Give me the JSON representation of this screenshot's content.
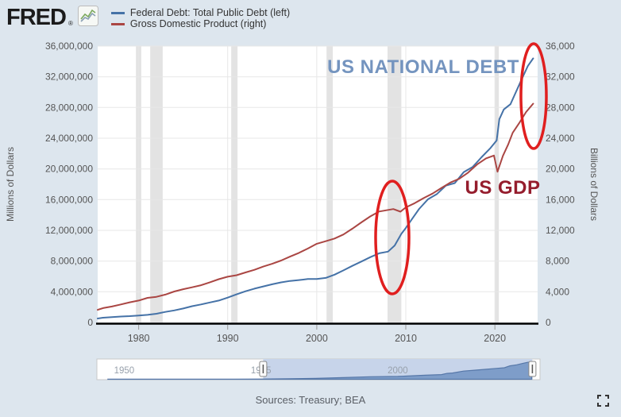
{
  "header": {
    "logo_text": "FRED",
    "logo_reg_mark": "®",
    "legend": [
      {
        "label": "Federal Debt: Total Public Debt (left)",
        "color": "#4572a7"
      },
      {
        "label": "Gross Domestic Product (right)",
        "color": "#aa4643"
      }
    ]
  },
  "colors": {
    "background": "#dde6ee",
    "plot_bg": "#ffffff",
    "grid": "#e7e7e7",
    "recession_band": "#e3e3e3",
    "axis_line": "#000000",
    "axis_text": "#555555",
    "tick_mark": "#999999",
    "slider_track": "#ffffff",
    "slider_track_border": "#c8c8c8",
    "slider_selection": "#c7d4ea",
    "slider_area_fill": "#7e9dc9",
    "slider_area_line": "#5677a8",
    "slider_label": "#98a1ac",
    "handle_fill": "#fafafa",
    "handle_border": "#888888",
    "footer_text": "#5a5f66",
    "fullscreen_icon": "#333333"
  },
  "chart_data": {
    "type": "line",
    "x_axis": {
      "range": [
        1975.4,
        2024.8
      ],
      "ticks": [
        1980,
        1990,
        2000,
        2010,
        2020
      ]
    },
    "left_axis": {
      "label": "Millions of Dollars",
      "range": [
        0,
        36000000
      ],
      "tick_labels": [
        "36,000,000",
        "32,000,000",
        "28,000,000",
        "24,000,000",
        "20,000,000",
        "16,000,000",
        "12,000,000",
        "8,000,000",
        "4,000,000",
        "0"
      ]
    },
    "right_axis": {
      "label": "Billions of Dollars",
      "range": [
        0,
        36000
      ],
      "tick_labels": [
        "36,000",
        "32,000",
        "28,000",
        "24,000",
        "20,000",
        "16,000",
        "12,000",
        "8,000",
        "4,000",
        "0"
      ]
    },
    "series": [
      {
        "name": "Federal Debt: Total Public Debt",
        "axis": "left",
        "color": "#4572a7",
        "points": [
          [
            1975.4,
            520000
          ],
          [
            1976,
            620000
          ],
          [
            1977,
            699000
          ],
          [
            1978,
            772000
          ],
          [
            1979,
            827000
          ],
          [
            1980,
            908000
          ],
          [
            1981,
            998000
          ],
          [
            1982,
            1142000
          ],
          [
            1983,
            1377000
          ],
          [
            1984,
            1572000
          ],
          [
            1985,
            1823000
          ],
          [
            1986,
            2125000
          ],
          [
            1987,
            2350000
          ],
          [
            1988,
            2602000
          ],
          [
            1989,
            2857000
          ],
          [
            1990,
            3233000
          ],
          [
            1991,
            3665000
          ],
          [
            1992,
            4065000
          ],
          [
            1993,
            4411000
          ],
          [
            1994,
            4693000
          ],
          [
            1995,
            4974000
          ],
          [
            1996,
            5225000
          ],
          [
            1997,
            5413000
          ],
          [
            1998,
            5526000
          ],
          [
            1999,
            5656000
          ],
          [
            2000,
            5674000
          ],
          [
            2001,
            5807000
          ],
          [
            2002,
            6228000
          ],
          [
            2003,
            6783000
          ],
          [
            2004,
            7379000
          ],
          [
            2005,
            7933000
          ],
          [
            2006,
            8507000
          ],
          [
            2007,
            9008000
          ],
          [
            2008,
            9230000
          ],
          [
            2008.75,
            10025000
          ],
          [
            2009.5,
            11545000
          ],
          [
            2010,
            12300000
          ],
          [
            2010.75,
            13562000
          ],
          [
            2011.5,
            14790000
          ],
          [
            2012.5,
            16066000
          ],
          [
            2013.5,
            16738000
          ],
          [
            2014.5,
            17824000
          ],
          [
            2015.5,
            18151000
          ],
          [
            2016.5,
            19573000
          ],
          [
            2017.5,
            20245000
          ],
          [
            2018.5,
            21516000
          ],
          [
            2019.5,
            22719000
          ],
          [
            2020.2,
            23700000
          ],
          [
            2020.5,
            26477000
          ],
          [
            2021,
            27750000
          ],
          [
            2021.75,
            28429000
          ],
          [
            2022.9,
            31400000
          ],
          [
            2023.7,
            33400000
          ],
          [
            2024.3,
            34400000
          ]
        ]
      },
      {
        "name": "Gross Domestic Product",
        "axis": "right",
        "color": "#aa4643",
        "points": [
          [
            1975.4,
            1650
          ],
          [
            1976,
            1873
          ],
          [
            1977,
            2082
          ],
          [
            1978,
            2352
          ],
          [
            1979,
            2627
          ],
          [
            1980,
            2857
          ],
          [
            1981,
            3207
          ],
          [
            1982,
            3344
          ],
          [
            1983,
            3634
          ],
          [
            1984,
            4038
          ],
          [
            1985,
            4339
          ],
          [
            1986,
            4580
          ],
          [
            1987,
            4855
          ],
          [
            1988,
            5236
          ],
          [
            1989,
            5642
          ],
          [
            1990,
            5963
          ],
          [
            1991,
            6158
          ],
          [
            1992,
            6520
          ],
          [
            1993,
            6859
          ],
          [
            1994,
            7287
          ],
          [
            1995,
            7640
          ],
          [
            1996,
            8073
          ],
          [
            1997,
            8577
          ],
          [
            1998,
            9063
          ],
          [
            1999,
            9631
          ],
          [
            2000,
            10251
          ],
          [
            2001,
            10582
          ],
          [
            2002,
            10936
          ],
          [
            2003,
            11458
          ],
          [
            2004,
            12214
          ],
          [
            2005,
            13037
          ],
          [
            2006,
            13815
          ],
          [
            2007,
            14452
          ],
          [
            2008.6,
            14770
          ],
          [
            2009.4,
            14430
          ],
          [
            2010,
            14992
          ],
          [
            2011,
            15543
          ],
          [
            2012,
            16197
          ],
          [
            2013,
            16785
          ],
          [
            2014,
            17527
          ],
          [
            2015,
            18225
          ],
          [
            2016,
            18715
          ],
          [
            2017,
            19519
          ],
          [
            2018,
            20580
          ],
          [
            2019,
            21373
          ],
          [
            2019.9,
            21750
          ],
          [
            2020.3,
            19636
          ],
          [
            2020.9,
            21700
          ],
          [
            2021.5,
            23200
          ],
          [
            2022,
            24700
          ],
          [
            2022.7,
            25900
          ],
          [
            2023.5,
            27400
          ],
          [
            2024.3,
            28500
          ]
        ]
      }
    ],
    "recession_bands_years": [
      [
        1979.7,
        1980.3
      ],
      [
        1981.3,
        1982.7
      ],
      [
        1990.4,
        1991.1
      ],
      [
        2001.1,
        2001.8
      ],
      [
        2007.95,
        2009.5
      ],
      [
        2020.0,
        2020.45
      ]
    ],
    "annotations": [
      {
        "text": "US NATIONAL DEBT",
        "color": "#7494bf",
        "cx": 533,
        "cy": 44,
        "font_size": 24
      },
      {
        "text": "US GDP",
        "color": "#951d2d",
        "cx": 633,
        "cy": 196,
        "font_size": 24
      }
    ],
    "highlight_ellipses": [
      {
        "cx": 494,
        "cy": 251,
        "rx": 21,
        "ry": 71
      },
      {
        "cx": 672,
        "cy": 73,
        "rx": 16,
        "ry": 66
      }
    ],
    "ellipse_color": "#e01f1f",
    "slider": {
      "range_years": [
        1945,
        2026
      ],
      "selection_years": [
        1975.4,
        2024.6
      ],
      "tick_labels": [
        "1950",
        "1975",
        "2000"
      ],
      "tick_years": [
        1950,
        1975,
        2000
      ],
      "series_points": [
        [
          1947,
          258000
        ],
        [
          1950,
          257000
        ],
        [
          1955,
          274000
        ],
        [
          1960,
          286000
        ],
        [
          1965,
          317000
        ],
        [
          1970,
          371000
        ],
        [
          1975,
          533000
        ],
        [
          1980,
          908000
        ],
        [
          1985,
          1823000
        ],
        [
          1990,
          3233000
        ],
        [
          1995,
          4974000
        ],
        [
          2000,
          5674000
        ],
        [
          2005,
          7933000
        ],
        [
          2008,
          9230000
        ],
        [
          2009,
          11545000
        ],
        [
          2010,
          12300000
        ],
        [
          2012,
          16066000
        ],
        [
          2014,
          17824000
        ],
        [
          2016,
          19573000
        ],
        [
          2018,
          21516000
        ],
        [
          2019.5,
          22719000
        ],
        [
          2020.5,
          26477000
        ],
        [
          2021.75,
          28429000
        ],
        [
          2022.9,
          31400000
        ],
        [
          2023.7,
          33400000
        ],
        [
          2024.5,
          34500000
        ]
      ]
    }
  },
  "footer": {
    "source_text": "Sources: Treasury; BEA"
  }
}
